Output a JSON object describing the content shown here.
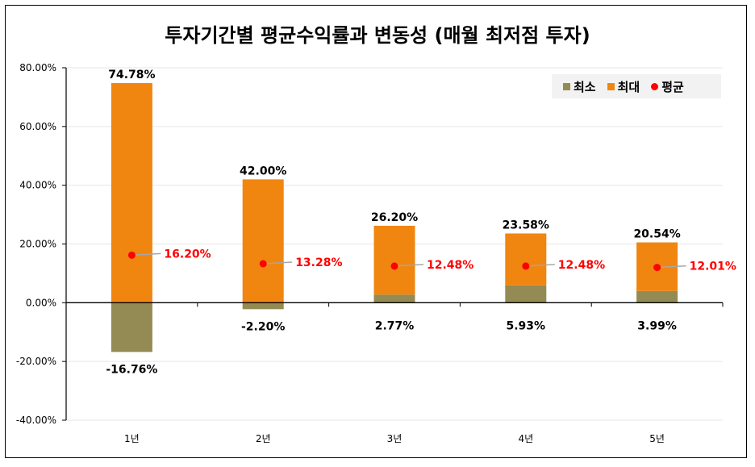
{
  "chart_data": {
    "type": "bar",
    "title": "투자기간별 평균수익률과 변동성 (매월 최저점 투자)",
    "categories": [
      "1년",
      "2년",
      "3년",
      "4년",
      "5년"
    ],
    "series": [
      {
        "name": "최소",
        "values": [
          -16.76,
          -2.2,
          2.77,
          5.93,
          3.99
        ],
        "labels": [
          "-16.76%",
          "-2.20%",
          "2.77%",
          "5.93%",
          "3.99%"
        ],
        "color": "#948A54"
      },
      {
        "name": "최대",
        "values": [
          74.78,
          42.0,
          26.2,
          23.58,
          20.54
        ],
        "labels": [
          "74.78%",
          "42.00%",
          "26.20%",
          "23.58%",
          "20.54%"
        ],
        "color": "#F0860F"
      },
      {
        "name": "평균",
        "values": [
          16.2,
          13.28,
          12.48,
          12.48,
          12.01
        ],
        "labels": [
          "16.20%",
          "13.28%",
          "12.48%",
          "12.48%",
          "12.01%"
        ],
        "color": "#FF0000"
      }
    ],
    "ylim": [
      -40,
      80
    ],
    "yticks": [
      "-40.00%",
      "-20.00%",
      "0.00%",
      "20.00%",
      "40.00%",
      "60.00%",
      "80.00%"
    ],
    "grid": true,
    "legend": "top-right"
  }
}
